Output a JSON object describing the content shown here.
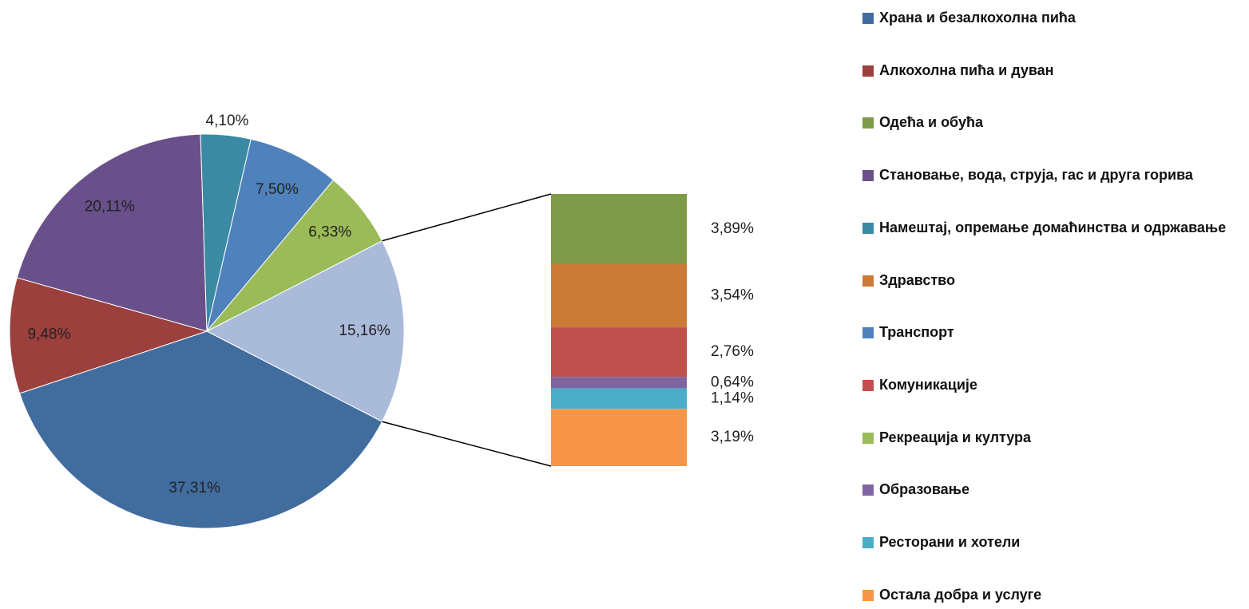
{
  "chart_data": {
    "type": "bar-of-pie",
    "categories": [
      "Храна и безалкохолна пића",
      "Алкохолна пића и дуван",
      "Одећа и обућа",
      "Становање, вода, струја, гас и друга горива",
      "Намештај, опремање домаћинства и одржавање",
      "Здравство",
      "Транспорт",
      "Комуникације",
      "Рекреација и култура",
      "Образовање",
      "Ресторани и хотели",
      "Остала добра и услуге"
    ],
    "values": [
      37.31,
      9.48,
      3.89,
      20.11,
      4.1,
      3.54,
      7.5,
      2.76,
      6.33,
      0.64,
      1.14,
      3.19
    ],
    "value_labels": [
      "37,31%",
      "9,48%",
      "3,89%",
      "20,11%",
      "4,10%",
      "3,54%",
      "7,50%",
      "2,76%",
      "6,33%",
      "0,64%",
      "1,14%",
      "3,19%"
    ],
    "colors": [
      "#416c9e",
      "#9b403d",
      "#7f9a48",
      "#69508a",
      "#3a8aa3",
      "#cc7a37",
      "#4f81bd",
      "#c0504d",
      "#9bbb59",
      "#8064a2",
      "#4bacc6",
      "#f79646"
    ],
    "in_bar": [
      false,
      false,
      true,
      false,
      false,
      true,
      false,
      true,
      false,
      true,
      true,
      true
    ],
    "other": {
      "value": 15.16,
      "label": "15,16%",
      "color": "#aabbd9"
    }
  }
}
